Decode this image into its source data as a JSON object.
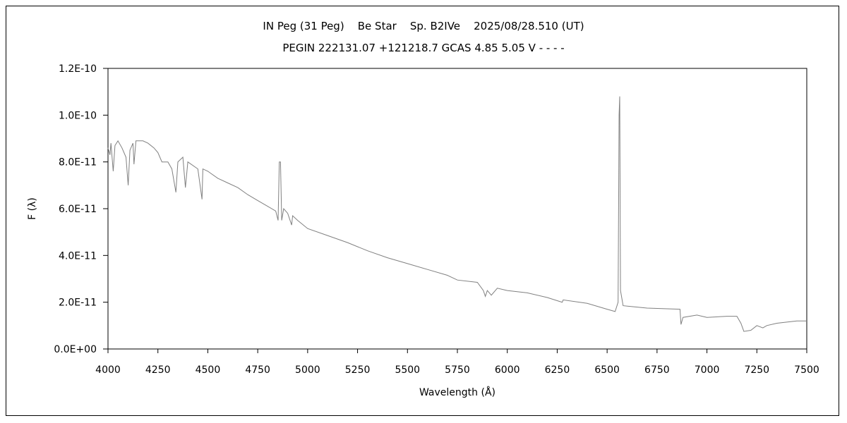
{
  "chart_data": {
    "type": "line",
    "title": "IN Peg (31 Peg)    Be Star    Sp. B2IVe    2025/08/28.510 (UT)",
    "subtitle": "PEGIN 222131.07 +121218.7 GCAS 4.85 5.05 V - - - -",
    "xlabel": "Wavelength (Å)",
    "ylabel": "F (λ)",
    "xlim": [
      4000,
      7500
    ],
    "ylim": [
      0,
      1.2e-10
    ],
    "xticks": [
      4000,
      4250,
      4500,
      4750,
      5000,
      5250,
      5500,
      5750,
      6000,
      6250,
      6500,
      6750,
      7000,
      7250,
      7500
    ],
    "xtick_labels": [
      "4000",
      "4250",
      "4500",
      "4750",
      "5000",
      "5250",
      "5500",
      "5750",
      "6000",
      "6250",
      "6500",
      "6750",
      "7000",
      "7250",
      "7500"
    ],
    "yticks": [
      0,
      2e-11,
      4e-11,
      6e-11,
      8e-11,
      1e-10,
      1.2e-10
    ],
    "ytick_labels": [
      "0.0E+00",
      "2.0E-11",
      "4.0E-11",
      "6.0E-11",
      "8.0E-11",
      "1.0E-10",
      "1.2E-10"
    ],
    "grid": false,
    "series_color": "#808080",
    "series": [
      {
        "name": "spectrum",
        "x": [
          4000,
          4010,
          4015,
          4026,
          4035,
          4050,
          4070,
          4090,
          4101,
          4110,
          4125,
          4130,
          4140,
          4175,
          4200,
          4230,
          4250,
          4270,
          4300,
          4320,
          4340,
          4350,
          4375,
          4388,
          4400,
          4450,
          4471,
          4475,
          4500,
          4550,
          4600,
          4650,
          4700,
          4750,
          4800,
          4840,
          4852,
          4858,
          4864,
          4870,
          4880,
          4900,
          4920,
          4925,
          4950,
          5000,
          5100,
          5200,
          5300,
          5400,
          5500,
          5600,
          5700,
          5750,
          5850,
          5880,
          5890,
          5900,
          5920,
          5950,
          6000,
          6100,
          6200,
          6275,
          6280,
          6400,
          6500,
          6540,
          6555,
          6560,
          6563,
          6567,
          6580,
          6700,
          6865,
          6870,
          6880,
          6950,
          7000,
          7100,
          7150,
          7170,
          7185,
          7220,
          7250,
          7280,
          7300,
          7350,
          7400,
          7450,
          7500
        ],
        "y": [
          8.6e-11,
          8.3e-11,
          8.8e-11,
          7.6e-11,
          8.7e-11,
          8.9e-11,
          8.6e-11,
          8.2e-11,
          7e-11,
          8.5e-11,
          8.8e-11,
          7.9e-11,
          8.9e-11,
          8.9e-11,
          8.8e-11,
          8.6e-11,
          8.4e-11,
          8e-11,
          8e-11,
          7.7e-11,
          6.7e-11,
          8e-11,
          8.2e-11,
          6.9e-11,
          8e-11,
          7.7e-11,
          6.4e-11,
          7.7e-11,
          7.6e-11,
          7.3e-11,
          7.1e-11,
          6.9e-11,
          6.6e-11,
          6.35e-11,
          6.1e-11,
          5.9e-11,
          5.5e-11,
          8e-11,
          8e-11,
          5.5e-11,
          6e-11,
          5.8e-11,
          5.3e-11,
          5.7e-11,
          5.5e-11,
          5.15e-11,
          4.85e-11,
          4.55e-11,
          4.2e-11,
          3.9e-11,
          3.65e-11,
          3.4e-11,
          3.15e-11,
          2.95e-11,
          2.85e-11,
          2.5e-11,
          2.25e-11,
          2.5e-11,
          2.3e-11,
          2.6e-11,
          2.5e-11,
          2.4e-11,
          2.2e-11,
          2e-11,
          2.1e-11,
          1.95e-11,
          1.7e-11,
          1.6e-11,
          2e-11,
          1e-10,
          1.08e-10,
          2.5e-11,
          1.85e-11,
          1.75e-11,
          1.7e-11,
          1.05e-11,
          1.35e-11,
          1.45e-11,
          1.35e-11,
          1.4e-11,
          1.4e-11,
          1.1e-11,
          7.5e-12,
          8e-12,
          1e-11,
          9e-12,
          1e-11,
          1.1e-11,
          1.15e-11,
          1.2e-11,
          1.2e-11
        ]
      }
    ]
  }
}
